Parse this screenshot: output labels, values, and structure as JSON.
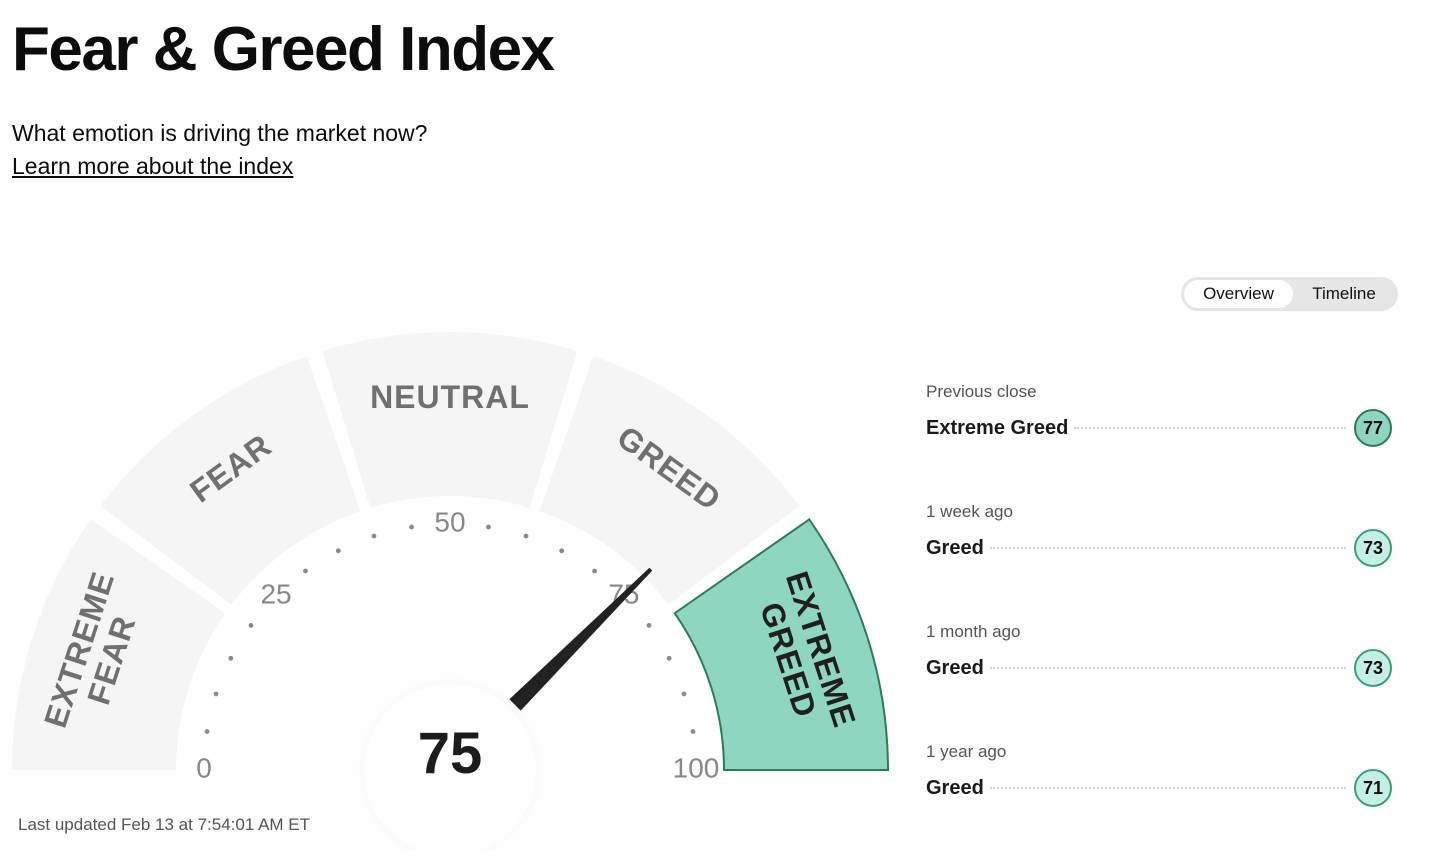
{
  "page": {
    "title": "Fear & Greed Index",
    "subtitle": "What emotion is driving the market now?",
    "learn_more_link": "Learn more about the index"
  },
  "toggle": {
    "options": [
      "Overview",
      "Timeline"
    ],
    "selected": "Overview"
  },
  "gauge": {
    "value": 75,
    "value_label": "75",
    "scale_labels": [
      "0",
      "25",
      "50",
      "75",
      "100"
    ],
    "segments": [
      {
        "lines": [
          "EXTREME",
          "FEAR"
        ],
        "active": false
      },
      {
        "lines": [
          "FEAR"
        ],
        "active": false
      },
      {
        "lines": [
          "NEUTRAL"
        ],
        "active": false
      },
      {
        "lines": [
          "GREED"
        ],
        "active": false
      },
      {
        "lines": [
          "EXTREME",
          "GREED"
        ],
        "active": true
      }
    ],
    "colors": {
      "inactive_segment": "#f5f5f5",
      "active_segment": "#8fd6c1",
      "active_border": "#2f7a5c",
      "label_inactive": "#707070",
      "label_active": "#1f1f1f",
      "needle": "#222222"
    }
  },
  "history": [
    {
      "label": "Previous close",
      "rating": "Extreme Greed",
      "value": "77",
      "level": "extreme"
    },
    {
      "label": "1 week ago",
      "rating": "Greed",
      "value": "73",
      "level": "greed"
    },
    {
      "label": "1 month ago",
      "rating": "Greed",
      "value": "73",
      "level": "greed"
    },
    {
      "label": "1 year ago",
      "rating": "Greed",
      "value": "71",
      "level": "greed"
    }
  ],
  "last_updated": "Last updated Feb 13 at 7:54:01 AM ET"
}
